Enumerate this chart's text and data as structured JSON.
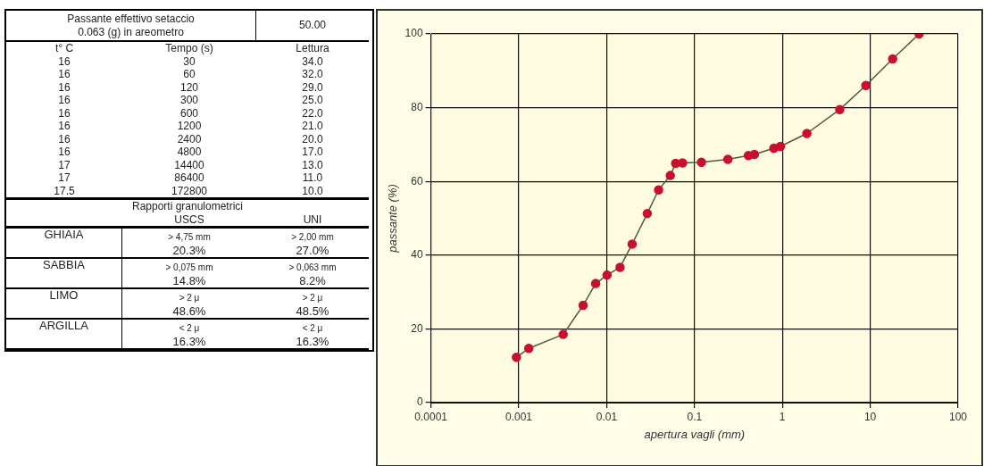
{
  "chart_data": [
    {
      "type": "other",
      "annotations": [
        "Passante effettivo setaccio\n0.063 (g) in areometro",
        "50.00",
        "t° C",
        "Tempo (s)",
        "Lettura",
        "16",
        "30",
        "34.0",
        "16",
        "60",
        "32.0",
        "16",
        "120",
        "29.0",
        "16",
        "300",
        "25.0",
        "16",
        "600",
        "22.0",
        "16",
        "1200",
        "21.0",
        "16",
        "2400",
        "20.0",
        "16",
        "4800",
        "17.0",
        "17",
        "14400",
        "13.0",
        "17",
        "86400",
        "11.0",
        "17.5",
        "172800",
        "10.0",
        "Rapporti granulometrici",
        "USCS",
        "UNI",
        "GHIAIA",
        "> 4,75 mm",
        "> 2,00 mm",
        "20.3%",
        "27.0%",
        "SABBIA",
        "> 0,075 mm",
        "> 0,063 mm",
        "14.8%",
        "8.2%",
        "LIMO",
        "> 2 μ",
        "> 2 μ",
        "48.6%",
        "48.5%",
        "ARGILLA",
        "< 2 μ",
        "< 2 μ",
        "16.3%",
        "16.3%"
      ]
    },
    {
      "type": "line",
      "xlabel": "apertura vagli (mm)",
      "ylabel": "passante (%)",
      "log": "x",
      "xlim": [
        0.0001,
        100
      ],
      "xticks": [
        0.0001,
        0.001,
        0.01,
        0.1,
        1,
        10,
        100
      ],
      "ylim": [
        0,
        100
      ],
      "yticks": [
        0,
        20,
        40,
        60,
        80,
        100
      ],
      "grid": true,
      "legend": false,
      "marker": "circle",
      "line_style": "solid",
      "series": [
        {
          "color": "#c8102e",
          "x": [
            0.00094,
            0.0013,
            0.0032,
            0.0054,
            0.0075,
            0.0101,
            0.0142,
            0.0195,
            0.029,
            0.039,
            0.053,
            0.061,
            0.073,
            0.12,
            0.24,
            0.41,
            0.48,
            0.8,
            0.95,
            1.9,
            4.5,
            8.9,
            18,
            36
          ],
          "values": [
            12.3,
            14.7,
            18.5,
            26.4,
            32.3,
            34.6,
            36.7,
            43.0,
            51.3,
            57.7,
            61.6,
            64.9,
            65.0,
            65.2,
            66.0,
            67.0,
            67.3,
            69.0,
            69.5,
            73.0,
            79.5,
            86.0,
            93.2,
            100
          ]
        }
      ]
    }
  ]
}
